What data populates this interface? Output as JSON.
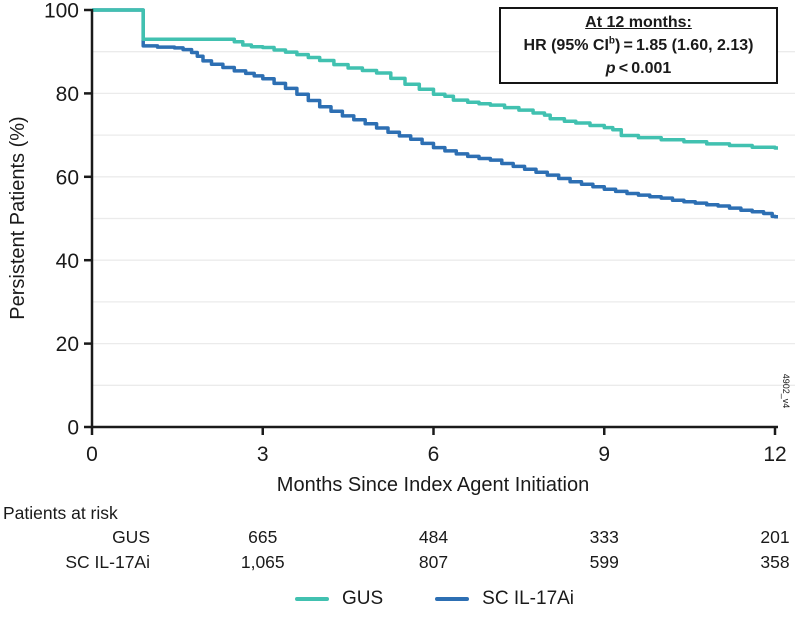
{
  "chart_data": {
    "type": "line",
    "subtype": "kaplan-meier-step",
    "title": "",
    "xlabel": "Months Since Index Agent Initiation",
    "ylabel": "Persistent Patients (%)",
    "xlim": [
      0,
      12
    ],
    "ylim": [
      0,
      100
    ],
    "grid": "horizontal, every 10%",
    "gridline_pcts": [
      10,
      20,
      30,
      40,
      50,
      60,
      70,
      80,
      90
    ],
    "x_ticks": [
      {
        "label": "0",
        "value": 0
      },
      {
        "label": "3",
        "value": 3
      },
      {
        "label": "6",
        "value": 6
      },
      {
        "label": "9",
        "value": 9
      },
      {
        "label": "12",
        "value": 12
      }
    ],
    "y_ticks": [
      {
        "label": "0",
        "value": 0
      },
      {
        "label": "20",
        "value": 20
      },
      {
        "label": "40",
        "value": 40
      },
      {
        "label": "60",
        "value": 60
      },
      {
        "label": "80",
        "value": 80
      },
      {
        "label": "100",
        "value": 100
      }
    ],
    "series": [
      {
        "name": "SC IL-17Ai",
        "color": "#2d6fb3",
        "points": [
          [
            0,
            100
          ],
          [
            0.9,
            91.4
          ],
          [
            1.15,
            91.1
          ],
          [
            1.45,
            90.9
          ],
          [
            1.6,
            90.5
          ],
          [
            1.75,
            89.8
          ],
          [
            1.85,
            88.9
          ],
          [
            1.95,
            87.8
          ],
          [
            2.1,
            87.0
          ],
          [
            2.3,
            86.2
          ],
          [
            2.5,
            85.4
          ],
          [
            2.7,
            84.8
          ],
          [
            2.85,
            84.2
          ],
          [
            3.0,
            83.5
          ],
          [
            3.2,
            82.4
          ],
          [
            3.4,
            81.2
          ],
          [
            3.6,
            79.8
          ],
          [
            3.8,
            78.3
          ],
          [
            4.0,
            76.8
          ],
          [
            4.2,
            75.7
          ],
          [
            4.4,
            74.6
          ],
          [
            4.6,
            73.7
          ],
          [
            4.8,
            72.7
          ],
          [
            5.0,
            71.7
          ],
          [
            5.2,
            70.7
          ],
          [
            5.4,
            69.8
          ],
          [
            5.6,
            69.0
          ],
          [
            5.8,
            68.0
          ],
          [
            6.0,
            67.0
          ],
          [
            6.2,
            66.2
          ],
          [
            6.4,
            65.5
          ],
          [
            6.6,
            64.9
          ],
          [
            6.8,
            64.4
          ],
          [
            7.0,
            64.0
          ],
          [
            7.2,
            63.2
          ],
          [
            7.4,
            62.5
          ],
          [
            7.6,
            61.8
          ],
          [
            7.8,
            61.1
          ],
          [
            8.0,
            60.4
          ],
          [
            8.2,
            59.6
          ],
          [
            8.4,
            58.8
          ],
          [
            8.6,
            58.2
          ],
          [
            8.8,
            57.6
          ],
          [
            9.0,
            57.0
          ],
          [
            9.2,
            56.5
          ],
          [
            9.4,
            56.0
          ],
          [
            9.6,
            55.6
          ],
          [
            9.8,
            55.2
          ],
          [
            10.0,
            54.9
          ],
          [
            10.2,
            54.4
          ],
          [
            10.4,
            54.0
          ],
          [
            10.6,
            53.7
          ],
          [
            10.8,
            53.3
          ],
          [
            11.0,
            53.0
          ],
          [
            11.2,
            52.5
          ],
          [
            11.4,
            52.0
          ],
          [
            11.6,
            51.6
          ],
          [
            11.8,
            51.2
          ],
          [
            11.95,
            50.5
          ],
          [
            12,
            50.4
          ]
        ]
      },
      {
        "name": "GUS",
        "color": "#41c1b0",
        "points": [
          [
            0,
            100
          ],
          [
            0.9,
            93.0
          ],
          [
            2.5,
            92.4
          ],
          [
            2.65,
            91.6
          ],
          [
            2.8,
            91.2
          ],
          [
            3.0,
            91.0
          ],
          [
            3.2,
            90.4
          ],
          [
            3.4,
            89.9
          ],
          [
            3.6,
            89.3
          ],
          [
            3.8,
            88.6
          ],
          [
            4.0,
            87.9
          ],
          [
            4.25,
            86.9
          ],
          [
            4.5,
            86.1
          ],
          [
            4.75,
            85.5
          ],
          [
            5.0,
            84.9
          ],
          [
            5.25,
            83.6
          ],
          [
            5.5,
            82.2
          ],
          [
            5.75,
            81.0
          ],
          [
            6.0,
            79.8
          ],
          [
            6.2,
            79.3
          ],
          [
            6.35,
            78.4
          ],
          [
            6.6,
            77.9
          ],
          [
            6.8,
            77.5
          ],
          [
            7.0,
            77.2
          ],
          [
            7.25,
            76.6
          ],
          [
            7.5,
            76.0
          ],
          [
            7.75,
            75.3
          ],
          [
            7.95,
            74.8
          ],
          [
            8.05,
            73.9
          ],
          [
            8.3,
            73.3
          ],
          [
            8.5,
            72.9
          ],
          [
            8.75,
            72.3
          ],
          [
            9.0,
            71.8
          ],
          [
            9.15,
            71.3
          ],
          [
            9.3,
            69.9
          ],
          [
            9.6,
            69.4
          ],
          [
            10.0,
            68.9
          ],
          [
            10.4,
            68.4
          ],
          [
            10.8,
            67.9
          ],
          [
            11.2,
            67.5
          ],
          [
            11.6,
            67.1
          ],
          [
            12,
            66.9
          ]
        ]
      }
    ],
    "legend_position": "bottom-center"
  },
  "annotation": {
    "title": "At 12 months:",
    "hr_prefix": "HR (95% CI",
    "hr_sup": "b",
    "hr_suffix": ") = 1.85 (1.60, 2.13)",
    "p_symbol": "p",
    "p_value": " < 0.001"
  },
  "risk_table": {
    "title": "Patients at risk",
    "at_months": [
      3,
      6,
      9,
      12
    ],
    "rows": [
      {
        "label": "GUS",
        "values": [
          "665",
          "484",
          "333",
          "201"
        ]
      },
      {
        "label": "SC IL-17Ai",
        "values": [
          "1,065",
          "807",
          "599",
          "358"
        ]
      }
    ]
  },
  "legend": {
    "items": [
      {
        "label": "GUS",
        "color": "#41c1b0"
      },
      {
        "label": "SC IL-17Ai",
        "color": "#2d6fb3"
      }
    ]
  },
  "watermark": "4902_v4",
  "colors": {
    "gus": "#41c1b0",
    "sc_il17ai": "#2d6fb3",
    "axis": "#1a1a1a",
    "grid": "#ebebeb"
  }
}
